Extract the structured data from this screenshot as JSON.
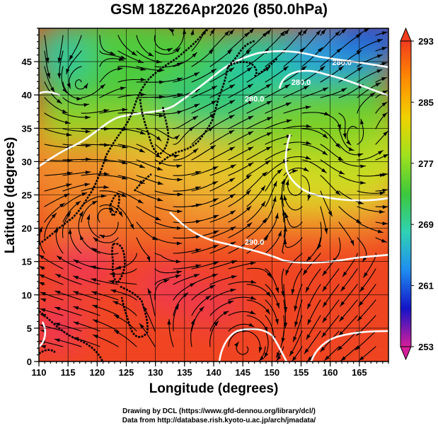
{
  "title": "GSM 18Z26Apr2026 (850.0hPa)",
  "credits": {
    "line1": "Drawing by DCL (https://www.gfd-dennou.org/library/dcl/)",
    "line2": "Data from http://database.rish.kyoto-u.ac.jp/arch/jmadata/"
  },
  "map": {
    "xlabel": "Longitude (degrees)",
    "ylabel": "Latitude  (degrees)",
    "lon_range": [
      110,
      170
    ],
    "lat_range": [
      0,
      50
    ],
    "lon_ticks": [
      "110",
      "115",
      "120",
      "125",
      "130",
      "135",
      "140",
      "145",
      "150",
      "155",
      "160",
      "165"
    ],
    "lat_ticks": [
      "0",
      "5",
      "10",
      "15",
      "20",
      "25",
      "30",
      "35",
      "40",
      "45"
    ],
    "grid": true,
    "contour_labels": [
      {
        "text": "280.0",
        "lon": 162,
        "lat": 44.5
      },
      {
        "text": "280.0",
        "lon": 155,
        "lat": 41.5
      },
      {
        "text": "280.0",
        "lon": 147,
        "lat": 39
      },
      {
        "text": "290.0",
        "lon": 147,
        "lat": 17.5
      }
    ]
  },
  "colorbar": {
    "tick_labels": [
      "293",
      "285",
      "277",
      "269",
      "261",
      "253"
    ],
    "range": [
      253,
      293
    ],
    "colors": [
      "#d61e9a",
      "#1414c8",
      "#1e8cf0",
      "#30d2b4",
      "#3cc83c",
      "#a0e01e",
      "#f0d200",
      "#ff8c00",
      "#f03c1e"
    ]
  },
  "icons": {
    "colorbar_top": "triangle-up-icon",
    "colorbar_bottom": "triangle-down-icon"
  }
}
